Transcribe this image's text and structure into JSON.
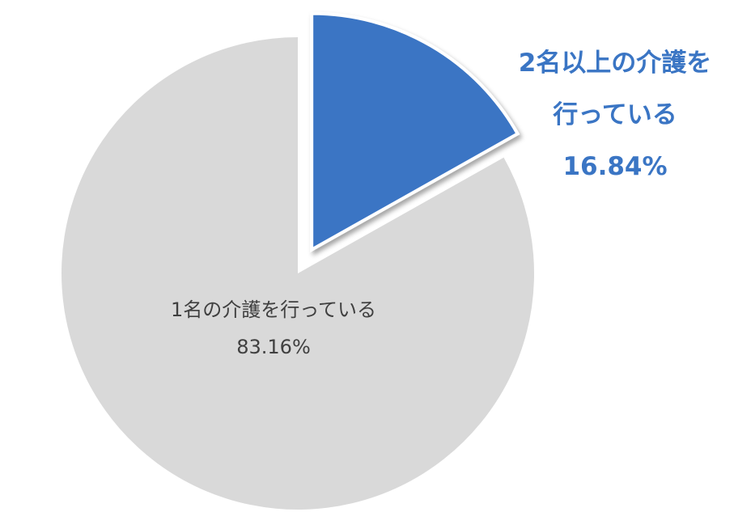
{
  "chart_data": {
    "type": "pie",
    "start_angle": "top, clockwise",
    "slices": [
      {
        "label_lines": [
          "2名以上の介護を",
          "行っている"
        ],
        "value": 16.84,
        "value_label": "16.84%",
        "color": "#3a75c4",
        "exploded": true
      },
      {
        "label_lines": [
          "1名の介護を行っている"
        ],
        "value": 83.16,
        "value_label": "83.16%",
        "color": "#d9d9d9",
        "exploded": false
      }
    ],
    "legend": "none"
  }
}
